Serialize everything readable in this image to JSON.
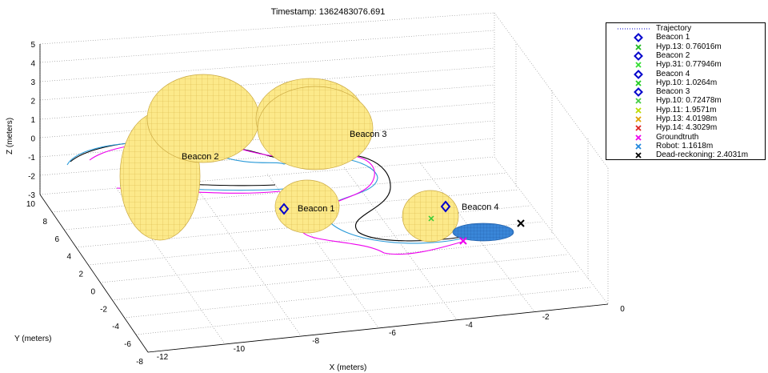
{
  "chart_data": {
    "type": "scatter",
    "title": "Timestamp: 1362483076.691",
    "xlabel": "X (meters)",
    "ylabel": "Y (meters)",
    "zlabel": "Z (meters)",
    "xlim": [
      -12,
      0
    ],
    "ylim": [
      -8,
      10
    ],
    "zlim": [
      -3,
      5
    ],
    "x_ticks": [
      "-12",
      "-10",
      "-8",
      "-6",
      "-4",
      "-2",
      "0"
    ],
    "y_ticks": [
      "-8",
      "-6",
      "-4",
      "-2",
      "0",
      "2",
      "4",
      "6",
      "8",
      "10"
    ],
    "z_ticks": [
      "-3",
      "-2",
      "-1",
      "0",
      "1",
      "2",
      "3",
      "4",
      "5"
    ],
    "grid": true,
    "legend_position": "top-right outside",
    "beacons": [
      {
        "label": "Beacon 1"
      },
      {
        "label": "Beacon 2"
      },
      {
        "label": "Beacon 3"
      },
      {
        "label": "Beacon 4"
      }
    ],
    "legend": [
      {
        "label": "Trajectory",
        "marker": "dotted-line",
        "color": "#0000cc"
      },
      {
        "label": "Beacon 1",
        "marker": "diamond",
        "color": "#0000cc"
      },
      {
        "label": "Hyp.13: 0.76016m",
        "marker": "x",
        "color": "#22bb22"
      },
      {
        "label": "Beacon 2",
        "marker": "diamond",
        "color": "#0000cc"
      },
      {
        "label": "Hyp.31: 0.77946m",
        "marker": "x",
        "color": "#33dd33"
      },
      {
        "label": "Beacon 4",
        "marker": "diamond",
        "color": "#0000cc"
      },
      {
        "label": "Hyp.10: 1.0264m",
        "marker": "x",
        "color": "#22cc22"
      },
      {
        "label": "Beacon 3",
        "marker": "diamond",
        "color": "#0000cc"
      },
      {
        "label": "Hyp.10: 0.72478m",
        "marker": "x",
        "color": "#44cc44"
      },
      {
        "label": "Hyp.11: 1.9571m",
        "marker": "x",
        "color": "#bbdd00"
      },
      {
        "label": "Hyp.13: 4.0198m",
        "marker": "x",
        "color": "#e0a000"
      },
      {
        "label": "Hyp.14: 4.3029m",
        "marker": "x",
        "color": "#dd2222"
      },
      {
        "label": "Groundtruth",
        "marker": "x",
        "color": "#ee00ee"
      },
      {
        "label": "Robot: 1.1618m",
        "marker": "x",
        "color": "#2288dd"
      },
      {
        "label": "Dead-reckoning: 2.4031m",
        "marker": "x",
        "color": "#000000"
      }
    ],
    "colors": {
      "ellipsoid_fill": "#fce98a",
      "ellipsoid_mesh": "#d9b84a",
      "robot_ellipse": "#3a86d8",
      "groundtruth_path": "#ee00ee",
      "robot_path": "#2a9ad8",
      "deadreckoning_path": "#000000"
    }
  }
}
